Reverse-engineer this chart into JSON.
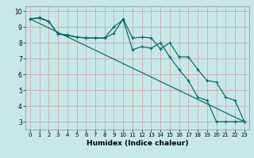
{
  "title": "",
  "xlabel": "Humidex (Indice chaleur)",
  "bg_color": "#c8e8e8",
  "grid_color": "#c8a0a0",
  "line_color": "#006868",
  "xlim_min": -0.5,
  "xlim_max": 23.5,
  "ylim_min": 2.5,
  "ylim_max": 10.3,
  "xticks": [
    0,
    1,
    2,
    3,
    4,
    5,
    6,
    7,
    8,
    9,
    10,
    11,
    12,
    13,
    14,
    15,
    16,
    17,
    18,
    19,
    20,
    21,
    22,
    23
  ],
  "yticks": [
    3,
    4,
    5,
    6,
    7,
    8,
    9,
    10
  ],
  "series1_x": [
    0,
    1,
    2,
    3,
    4,
    5,
    6,
    7,
    8,
    9,
    10,
    11,
    12,
    13,
    14,
    15,
    16,
    17,
    18,
    19,
    20,
    21,
    22,
    23
  ],
  "series1_y": [
    9.5,
    9.6,
    9.35,
    8.55,
    8.5,
    8.35,
    8.3,
    8.3,
    8.3,
    9.0,
    9.45,
    7.55,
    7.75,
    7.65,
    8.0,
    7.1,
    6.3,
    5.6,
    4.55,
    4.35,
    3.0,
    3.0,
    3.0,
    3.0
  ],
  "series2_x": [
    0,
    1,
    2,
    3,
    4,
    5,
    6,
    7,
    8,
    9,
    10,
    11,
    12,
    13,
    14,
    15,
    16,
    17,
    18,
    19,
    20,
    21,
    22,
    23
  ],
  "series2_y": [
    9.5,
    9.55,
    9.35,
    8.55,
    8.45,
    8.35,
    8.3,
    8.3,
    8.28,
    8.6,
    9.5,
    8.3,
    8.35,
    8.3,
    7.6,
    8.0,
    7.1,
    7.1,
    6.3,
    5.6,
    5.5,
    4.55,
    4.35,
    3.0
  ],
  "trend_x": [
    0,
    23
  ],
  "trend_y": [
    9.5,
    3.0
  ],
  "xlabel_fontsize": 6.5,
  "tick_fontsize": 5.0,
  "linewidth": 0.85,
  "markersize": 3.0,
  "markeredgewidth": 0.8
}
